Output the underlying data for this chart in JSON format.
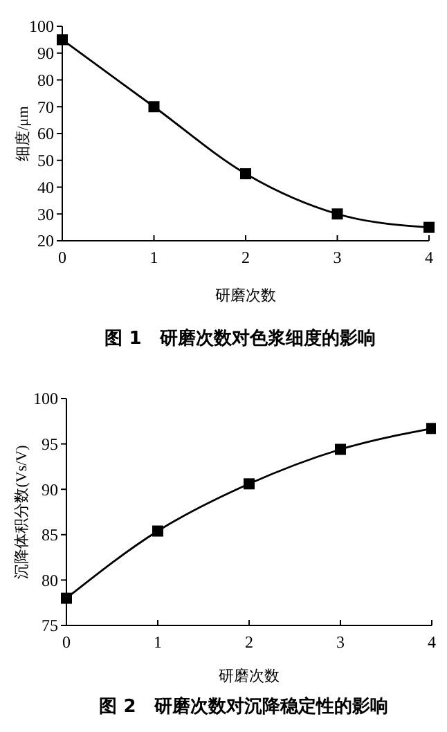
{
  "chart_data": [
    {
      "type": "line",
      "title": "图 1　研磨次数对色浆细度的影响",
      "xlabel": "研磨次数",
      "ylabel": "细度/μm",
      "x": [
        0,
        1,
        2,
        3,
        4
      ],
      "xlim": [
        0,
        4
      ],
      "xticks": [
        0,
        1,
        2,
        3,
        4
      ],
      "ylim": [
        20,
        100
      ],
      "yticks": [
        20,
        30,
        40,
        50,
        60,
        70,
        80,
        90,
        100
      ],
      "marker": "square",
      "line_style": "solid",
      "series": [
        {
          "color": "#000000",
          "values": [
            95,
            70,
            45,
            30,
            25
          ]
        }
      ]
    },
    {
      "type": "line",
      "title": "图 2　研磨次数对沉降稳定性的影响",
      "xlabel": "研磨次数",
      "ylabel": "沉降体积分数(Vs/V)",
      "x": [
        0,
        1,
        2,
        3,
        4
      ],
      "xlim": [
        0,
        4
      ],
      "xticks": [
        0,
        1,
        2,
        3,
        4
      ],
      "ylim": [
        75,
        100
      ],
      "yticks": [
        75,
        80,
        85,
        90,
        95,
        100
      ],
      "marker": "square",
      "line_style": "solid",
      "series": [
        {
          "color": "#000000",
          "values": [
            78,
            85.4,
            90.6,
            94.4,
            96.7
          ]
        }
      ]
    }
  ]
}
